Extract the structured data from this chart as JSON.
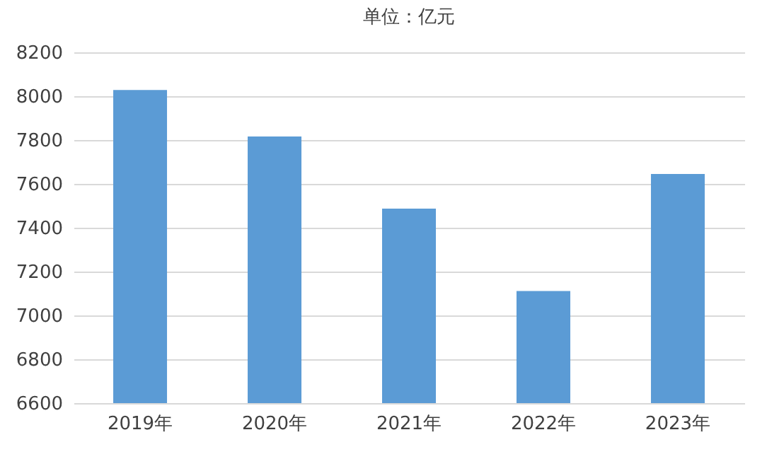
{
  "chart_data": {
    "type": "bar",
    "title": "单位：亿元",
    "categories": [
      "2019年",
      "2020年",
      "2021年",
      "2022年",
      "2023年"
    ],
    "values": [
      8028,
      7816,
      7487,
      7111,
      7645
    ],
    "color": "#5b9bd5",
    "ylim": [
      6600,
      8200
    ],
    "yticks": [
      6600,
      6800,
      7000,
      7200,
      7400,
      7600,
      7800,
      8000,
      8200
    ],
    "grid": "y"
  }
}
